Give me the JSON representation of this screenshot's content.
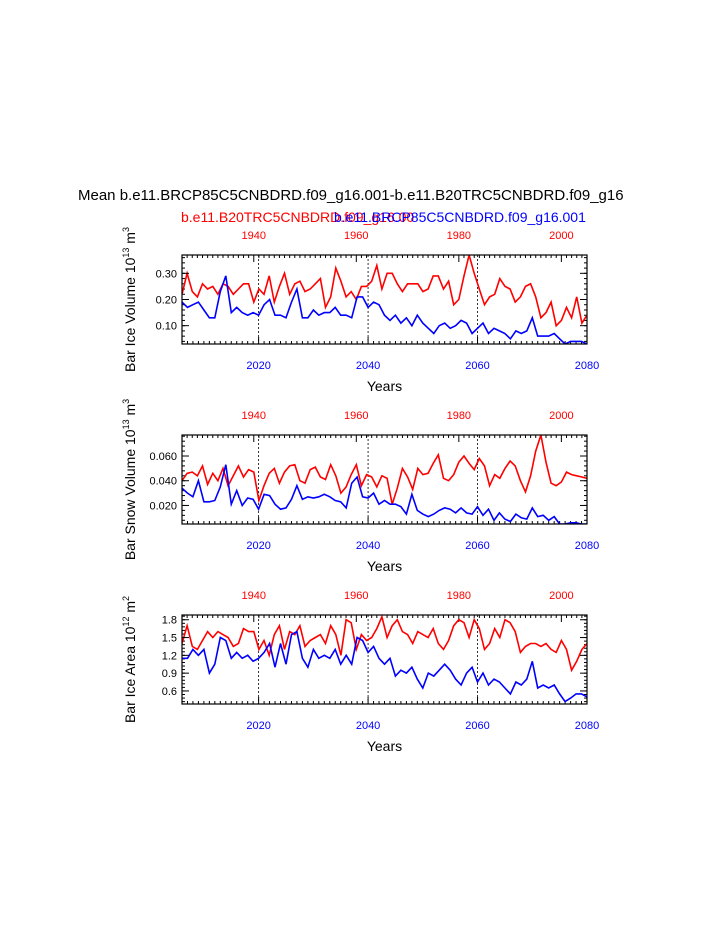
{
  "title": "Mean b.e11.BRCP85C5CNBDRD.f09_g16.001-b.e11.B20TRC5CNBDRD.f09_g16",
  "legend": {
    "red_label": "b.e11.B20TRC5CNBDRD.f09_g16.00",
    "blue_label": "b.e11.BRCP85C5CNBDRD.f09_g16.001"
  },
  "colors": {
    "red": "#ff0000",
    "blue": "#0000ff",
    "axis": "#000000"
  },
  "chart_data": [
    {
      "type": "line",
      "ylabel": "Bar Ice Volume 10",
      "ylabel_sup1": "13",
      "ylabel_unit": "m",
      "ylabel_sup2": "3",
      "xlabel": "Years",
      "bottom_axis": {
        "range": [
          2006,
          2080
        ],
        "ticks": [
          "2020",
          "2040",
          "2060",
          "2080"
        ]
      },
      "top_axis": {
        "range": [
          1926,
          2005
        ],
        "ticks": [
          "1940",
          "1960",
          "1980",
          "2000"
        ]
      },
      "ylim": [
        0.03,
        0.37
      ],
      "yticks": [
        "0.30",
        "0.20",
        "0.10"
      ],
      "series": [
        {
          "axis": "top",
          "color": "red",
          "values": [
            0.22,
            0.3,
            0.23,
            0.21,
            0.26,
            0.24,
            0.25,
            0.22,
            0.26,
            0.25,
            0.22,
            0.24,
            0.26,
            0.26,
            0.19,
            0.24,
            0.22,
            0.29,
            0.19,
            0.25,
            0.3,
            0.22,
            0.26,
            0.27,
            0.23,
            0.24,
            0.26,
            0.28,
            0.17,
            0.21,
            0.32,
            0.27,
            0.21,
            0.23,
            0.2,
            0.25,
            0.25,
            0.27,
            0.33,
            0.24,
            0.3,
            0.3,
            0.26,
            0.23,
            0.26,
            0.26,
            0.26,
            0.23,
            0.24,
            0.29,
            0.29,
            0.24,
            0.27,
            0.18,
            0.2,
            0.29,
            0.37,
            0.3,
            0.24,
            0.18,
            0.21,
            0.22,
            0.28,
            0.25,
            0.24,
            0.19,
            0.21,
            0.25,
            0.26,
            0.21,
            0.13,
            0.15,
            0.19,
            0.1,
            0.12,
            0.17,
            0.13,
            0.21,
            0.11,
            0.14
          ]
        },
        {
          "axis": "bottom",
          "color": "blue",
          "values": [
            0.19,
            0.17,
            0.18,
            0.19,
            0.16,
            0.13,
            0.13,
            0.23,
            0.29,
            0.15,
            0.17,
            0.15,
            0.14,
            0.15,
            0.14,
            0.18,
            0.2,
            0.14,
            0.14,
            0.13,
            0.19,
            0.24,
            0.13,
            0.13,
            0.16,
            0.14,
            0.15,
            0.15,
            0.17,
            0.14,
            0.14,
            0.13,
            0.21,
            0.21,
            0.17,
            0.19,
            0.18,
            0.14,
            0.12,
            0.14,
            0.11,
            0.13,
            0.1,
            0.14,
            0.11,
            0.09,
            0.07,
            0.1,
            0.11,
            0.09,
            0.1,
            0.12,
            0.11,
            0.07,
            0.09,
            0.11,
            0.07,
            0.09,
            0.08,
            0.07,
            0.05,
            0.08,
            0.07,
            0.08,
            0.13,
            0.06,
            0.06,
            0.06,
            0.07,
            0.05,
            0.03,
            0.04,
            0.04,
            0.04,
            0.03
          ]
        }
      ]
    },
    {
      "type": "line",
      "ylabel": "Bar Snow Volume 10",
      "ylabel_sup1": "13",
      "ylabel_unit": "m",
      "ylabel_sup2": "3",
      "xlabel": "Years",
      "bottom_axis": {
        "range": [
          2006,
          2080
        ],
        "ticks": [
          "2020",
          "2040",
          "2060",
          "2080"
        ]
      },
      "top_axis": {
        "range": [
          1926,
          2005
        ],
        "ticks": [
          "1940",
          "1960",
          "1980",
          "2000"
        ]
      },
      "ylim": [
        0.005,
        0.077
      ],
      "yticks": [
        "0.060",
        "0.040",
        "0.020"
      ],
      "series": [
        {
          "axis": "top",
          "color": "red",
          "values": [
            0.04,
            0.046,
            0.047,
            0.044,
            0.052,
            0.037,
            0.046,
            0.04,
            0.05,
            0.036,
            0.044,
            0.052,
            0.043,
            0.049,
            0.047,
            0.024,
            0.036,
            0.046,
            0.05,
            0.038,
            0.047,
            0.052,
            0.053,
            0.04,
            0.038,
            0.049,
            0.051,
            0.043,
            0.041,
            0.053,
            0.044,
            0.03,
            0.035,
            0.045,
            0.053,
            0.036,
            0.045,
            0.043,
            0.035,
            0.044,
            0.042,
            0.021,
            0.034,
            0.05,
            0.043,
            0.033,
            0.05,
            0.045,
            0.046,
            0.054,
            0.061,
            0.042,
            0.04,
            0.045,
            0.055,
            0.06,
            0.054,
            0.049,
            0.058,
            0.052,
            0.036,
            0.045,
            0.042,
            0.05,
            0.056,
            0.052,
            0.04,
            0.031,
            0.044,
            0.064,
            0.077,
            0.055,
            0.038,
            0.036,
            0.039,
            0.047,
            0.045,
            0.044,
            0.043,
            0.042
          ]
        },
        {
          "axis": "bottom",
          "color": "blue",
          "values": [
            0.034,
            0.03,
            0.027,
            0.04,
            0.023,
            0.023,
            0.024,
            0.035,
            0.053,
            0.021,
            0.032,
            0.02,
            0.026,
            0.025,
            0.017,
            0.029,
            0.028,
            0.021,
            0.017,
            0.018,
            0.025,
            0.036,
            0.025,
            0.027,
            0.026,
            0.027,
            0.029,
            0.027,
            0.024,
            0.023,
            0.018,
            0.038,
            0.043,
            0.027,
            0.026,
            0.03,
            0.021,
            0.024,
            0.021,
            0.021,
            0.019,
            0.013,
            0.029,
            0.016,
            0.013,
            0.011,
            0.013,
            0.016,
            0.018,
            0.017,
            0.014,
            0.018,
            0.014,
            0.013,
            0.019,
            0.012,
            0.017,
            0.008,
            0.014,
            0.009,
            0.007,
            0.013,
            0.01,
            0.009,
            0.018,
            0.011,
            0.012,
            0.008,
            0.011,
            0.005,
            0.005,
            0.006,
            0.006,
            0.005,
            0.005
          ]
        }
      ]
    },
    {
      "type": "line",
      "ylabel": "Bar Ice Area 10",
      "ylabel_sup1": "12",
      "ylabel_unit": "m",
      "ylabel_sup2": "2",
      "xlabel": "Years",
      "bottom_axis": {
        "range": [
          2006,
          2080
        ],
        "ticks": [
          "2020",
          "2040",
          "2060",
          "2080"
        ]
      },
      "top_axis": {
        "range": [
          1926,
          2005
        ],
        "ticks": [
          "1940",
          "1960",
          "1980",
          "2000"
        ]
      },
      "ylim": [
        0.38,
        1.88
      ],
      "yticks": [
        "1.8",
        "1.5",
        "1.2",
        "0.9",
        "0.6"
      ],
      "series": [
        {
          "axis": "top",
          "color": "red",
          "values": [
            1.4,
            1.7,
            1.35,
            1.3,
            1.45,
            1.6,
            1.5,
            1.6,
            1.55,
            1.5,
            1.35,
            1.4,
            1.65,
            1.6,
            1.6,
            1.3,
            1.45,
            1.2,
            1.55,
            1.7,
            1.3,
            1.6,
            1.55,
            1.7,
            1.35,
            1.45,
            1.5,
            1.55,
            1.4,
            1.7,
            1.55,
            1.2,
            1.8,
            1.75,
            1.3,
            1.55,
            1.45,
            1.5,
            1.65,
            1.85,
            1.5,
            1.7,
            1.8,
            1.6,
            1.55,
            1.4,
            1.6,
            1.55,
            1.5,
            1.65,
            1.4,
            1.3,
            1.45,
            1.7,
            1.8,
            1.75,
            1.5,
            1.8,
            1.65,
            1.3,
            1.4,
            1.65,
            1.5,
            1.8,
            1.75,
            1.6,
            1.25,
            1.35,
            1.4,
            1.4,
            1.35,
            1.4,
            1.3,
            1.25,
            1.45,
            1.3,
            0.95,
            1.1,
            1.3,
            1.4
          ]
        },
        {
          "axis": "bottom",
          "color": "blue",
          "values": [
            1.15,
            1.15,
            1.3,
            1.2,
            1.3,
            0.9,
            1.05,
            1.5,
            1.45,
            1.15,
            1.25,
            1.15,
            1.2,
            1.1,
            1.15,
            1.25,
            1.4,
            1.0,
            1.4,
            1.05,
            1.55,
            1.6,
            1.15,
            1.0,
            1.3,
            1.15,
            1.2,
            1.15,
            1.3,
            1.05,
            1.2,
            1.05,
            1.5,
            1.45,
            1.25,
            1.35,
            1.15,
            1.05,
            1.15,
            0.85,
            0.95,
            0.9,
            1.0,
            0.8,
            0.65,
            0.9,
            0.85,
            0.95,
            1.05,
            0.95,
            0.8,
            0.7,
            0.9,
            1.0,
            0.75,
            0.9,
            0.7,
            0.8,
            0.75,
            0.65,
            0.55,
            0.75,
            0.7,
            0.8,
            1.1,
            0.65,
            0.7,
            0.65,
            0.7,
            0.55,
            0.42,
            0.48,
            0.55,
            0.55,
            0.5
          ]
        }
      ]
    }
  ]
}
